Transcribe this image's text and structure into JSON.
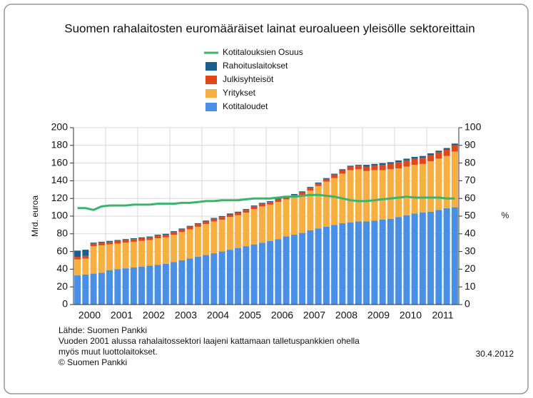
{
  "chart_data": {
    "type": "stacked-bar-line",
    "title": "Suomen rahalaitosten euromääräiset lainat euroalueen yleisölle sektoreittain",
    "ylabel": "Mrd. euroa",
    "y2label": "%",
    "categories": [
      "2000",
      null,
      null,
      null,
      "2001",
      null,
      null,
      null,
      "2002",
      null,
      null,
      null,
      "2003",
      null,
      null,
      null,
      "2004",
      null,
      null,
      null,
      "2005",
      null,
      null,
      null,
      "2006",
      null,
      null,
      null,
      "2007",
      null,
      null,
      null,
      "2008",
      null,
      null,
      null,
      "2009",
      null,
      null,
      null,
      "2010",
      null,
      null,
      null,
      "2011",
      null,
      null,
      null
    ],
    "series": [
      {
        "name": "Kotitaloudet",
        "color": "#4a8fe6",
        "values": [
          33,
          34,
          35,
          36,
          39,
          40,
          41,
          42,
          43,
          44,
          45,
          46,
          48,
          50,
          52,
          54,
          56,
          58,
          60,
          62,
          64,
          66,
          68,
          70,
          72,
          74,
          77,
          79,
          81,
          84,
          86,
          88,
          90,
          92,
          93,
          94,
          94,
          95,
          96,
          97,
          99,
          101,
          103,
          104,
          105,
          107,
          109,
          110
        ]
      },
      {
        "name": "Yritykset",
        "color": "#f7b040",
        "values": [
          18,
          18,
          31,
          31,
          29,
          29,
          29,
          29,
          29,
          29,
          30,
          30,
          31,
          32,
          33,
          34,
          35,
          36,
          36,
          37,
          37,
          38,
          40,
          41,
          41,
          42,
          42,
          42,
          43,
          45,
          48,
          51,
          53,
          56,
          59,
          59,
          57,
          57,
          56,
          56,
          55,
          55,
          55,
          55,
          57,
          58,
          59,
          63
        ]
      },
      {
        "name": "Julkisyhteisöt",
        "color": "#e0481a",
        "values": [
          3,
          3,
          3,
          3,
          3,
          3,
          3,
          3,
          3,
          3,
          3,
          3,
          3,
          3,
          3,
          3,
          3,
          3,
          3,
          3,
          3,
          3,
          3,
          3,
          3,
          3,
          3,
          3,
          3,
          3,
          3,
          3,
          4,
          4,
          4,
          4,
          5,
          5,
          6,
          6,
          7,
          7,
          7,
          7,
          7,
          7,
          7,
          7
        ]
      },
      {
        "name": "Rahoituslaitokset",
        "color": "#1b5f8e",
        "values": [
          7,
          7,
          1,
          1,
          1,
          1,
          1,
          1,
          1,
          1,
          1,
          1,
          1,
          1,
          1,
          1,
          1,
          1,
          1,
          1,
          1,
          1,
          1,
          1,
          1,
          1,
          1,
          1,
          1,
          1,
          1,
          1,
          1,
          1,
          1,
          1,
          2,
          2,
          2,
          2,
          2,
          2,
          2,
          2,
          2,
          2,
          2,
          2
        ]
      },
      {
        "name": "Kotitalouksien Osuus",
        "color": "#3cb46e",
        "axis": "y2",
        "values": [
          54.5,
          54.5,
          53.5,
          55.5,
          56,
          56,
          56,
          56.5,
          56.5,
          56.5,
          57,
          57,
          57,
          57.5,
          57.5,
          58,
          58.5,
          58.5,
          59,
          59,
          59,
          59.5,
          60,
          60,
          60,
          60.5,
          61,
          61,
          61.5,
          62,
          62,
          61.5,
          61,
          60,
          59,
          58.5,
          58.5,
          59,
          59.5,
          60,
          60.5,
          61,
          60.5,
          60.5,
          60.5,
          60.5,
          60,
          60
        ]
      }
    ],
    "ylim": [
      0,
      200
    ],
    "yticks": [
      0,
      20,
      40,
      60,
      80,
      100,
      120,
      140,
      160,
      180,
      200
    ],
    "y2lim": [
      0,
      100
    ],
    "y2ticks": [
      0,
      10,
      20,
      30,
      40,
      50,
      60,
      70,
      80,
      90,
      100
    ],
    "grid": true,
    "notes": [
      "Lähde: Suomen Pankki",
      "Vuoden 2001 alussa rahalaitossektori laajeni kattamaan talletuspankkien ohella",
      "myös muut luottolaitokset.",
      "© Suomen Pankki"
    ],
    "date": "30.4.2012"
  }
}
